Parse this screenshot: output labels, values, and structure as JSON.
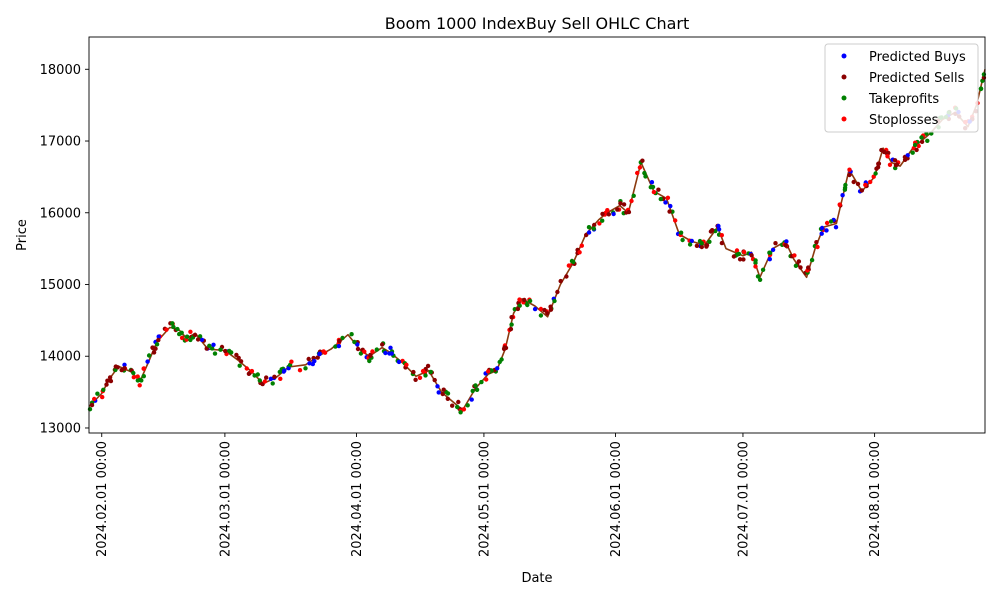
{
  "chart_data": {
    "type": "scatter",
    "title": "Boom 1000 IndexBuy Sell OHLC Chart",
    "xlabel": "Date",
    "ylabel": "Price",
    "x_range": [
      "2024-01-29",
      "2024-08-27"
    ],
    "ylim": [
      12930,
      18450
    ],
    "yticks": [
      13000,
      14000,
      15000,
      16000,
      17000,
      18000
    ],
    "xticks": [
      {
        "date": "2024-02-01",
        "label": "2024.02.01 00:00"
      },
      {
        "date": "2024-03-01",
        "label": "2024.03.01 00:00"
      },
      {
        "date": "2024-04-01",
        "label": "2024.04.01 00:00"
      },
      {
        "date": "2024-05-01",
        "label": "2024.05.01 00:00"
      },
      {
        "date": "2024-06-01",
        "label": "2024.06.01 00:00"
      },
      {
        "date": "2024-07-01",
        "label": "2024.07.01 00:00"
      },
      {
        "date": "2024-08-01",
        "label": "2024.08.01 00:00"
      }
    ],
    "price_series": {
      "color": "#8b3a0f",
      "x": [
        "2024-01-29",
        "2024-02-01",
        "2024-02-03",
        "2024-02-05",
        "2024-02-08",
        "2024-02-10",
        "2024-02-12",
        "2024-02-14",
        "2024-02-17",
        "2024-02-19",
        "2024-02-21",
        "2024-02-23",
        "2024-02-26",
        "2024-03-01",
        "2024-03-04",
        "2024-03-07",
        "2024-03-10",
        "2024-03-13",
        "2024-03-16",
        "2024-03-20",
        "2024-03-23",
        "2024-03-26",
        "2024-03-30",
        "2024-04-02",
        "2024-04-04",
        "2024-04-07",
        "2024-04-09",
        "2024-04-12",
        "2024-04-15",
        "2024-04-18",
        "2024-04-21",
        "2024-04-24",
        "2024-04-26",
        "2024-04-29",
        "2024-05-02",
        "2024-05-04",
        "2024-05-06",
        "2024-05-08",
        "2024-05-10",
        "2024-05-13",
        "2024-05-16",
        "2024-05-19",
        "2024-05-22",
        "2024-05-25",
        "2024-05-28",
        "2024-05-30",
        "2024-06-02",
        "2024-06-04",
        "2024-06-07",
        "2024-06-10",
        "2024-06-13",
        "2024-06-16",
        "2024-06-19",
        "2024-06-22",
        "2024-06-25",
        "2024-06-27",
        "2024-07-01",
        "2024-07-03",
        "2024-07-05",
        "2024-07-08",
        "2024-07-11",
        "2024-07-13",
        "2024-07-16",
        "2024-07-18",
        "2024-07-20",
        "2024-07-23",
        "2024-07-26",
        "2024-07-29",
        "2024-08-01",
        "2024-08-03",
        "2024-08-05",
        "2024-08-07",
        "2024-08-10",
        "2024-08-12",
        "2024-08-14",
        "2024-08-17",
        "2024-08-20",
        "2024-08-23",
        "2024-08-25",
        "2024-08-27"
      ],
      "y": [
        13300,
        13480,
        13700,
        13860,
        13780,
        13650,
        13920,
        14200,
        14400,
        14380,
        14250,
        14320,
        14100,
        14080,
        13950,
        13800,
        13620,
        13700,
        13850,
        13880,
        14000,
        14100,
        14300,
        14080,
        14000,
        14120,
        14050,
        13900,
        13720,
        13800,
        13500,
        13350,
        13250,
        13550,
        13750,
        13800,
        14100,
        14600,
        14800,
        14700,
        14550,
        15000,
        15300,
        15700,
        15900,
        16000,
        16100,
        16000,
        16700,
        16300,
        16200,
        15700,
        15600,
        15550,
        15800,
        15500,
        15400,
        15450,
        15100,
        15500,
        15600,
        15350,
        15100,
        15500,
        15800,
        15850,
        16600,
        16300,
        16500,
        16900,
        16700,
        16650,
        16900,
        17000,
        17100,
        17300,
        17400,
        17200,
        17500,
        18000
      ]
    },
    "series": [
      {
        "name": "Predicted Buys",
        "color": "#0000ff"
      },
      {
        "name": "Predicted Sells",
        "color": "#8b0000"
      },
      {
        "name": "Takeprofits",
        "color": "#008000"
      },
      {
        "name": "Stoplosses",
        "color": "#ff0000"
      }
    ],
    "legend_position": "top-right",
    "grid": false
  }
}
